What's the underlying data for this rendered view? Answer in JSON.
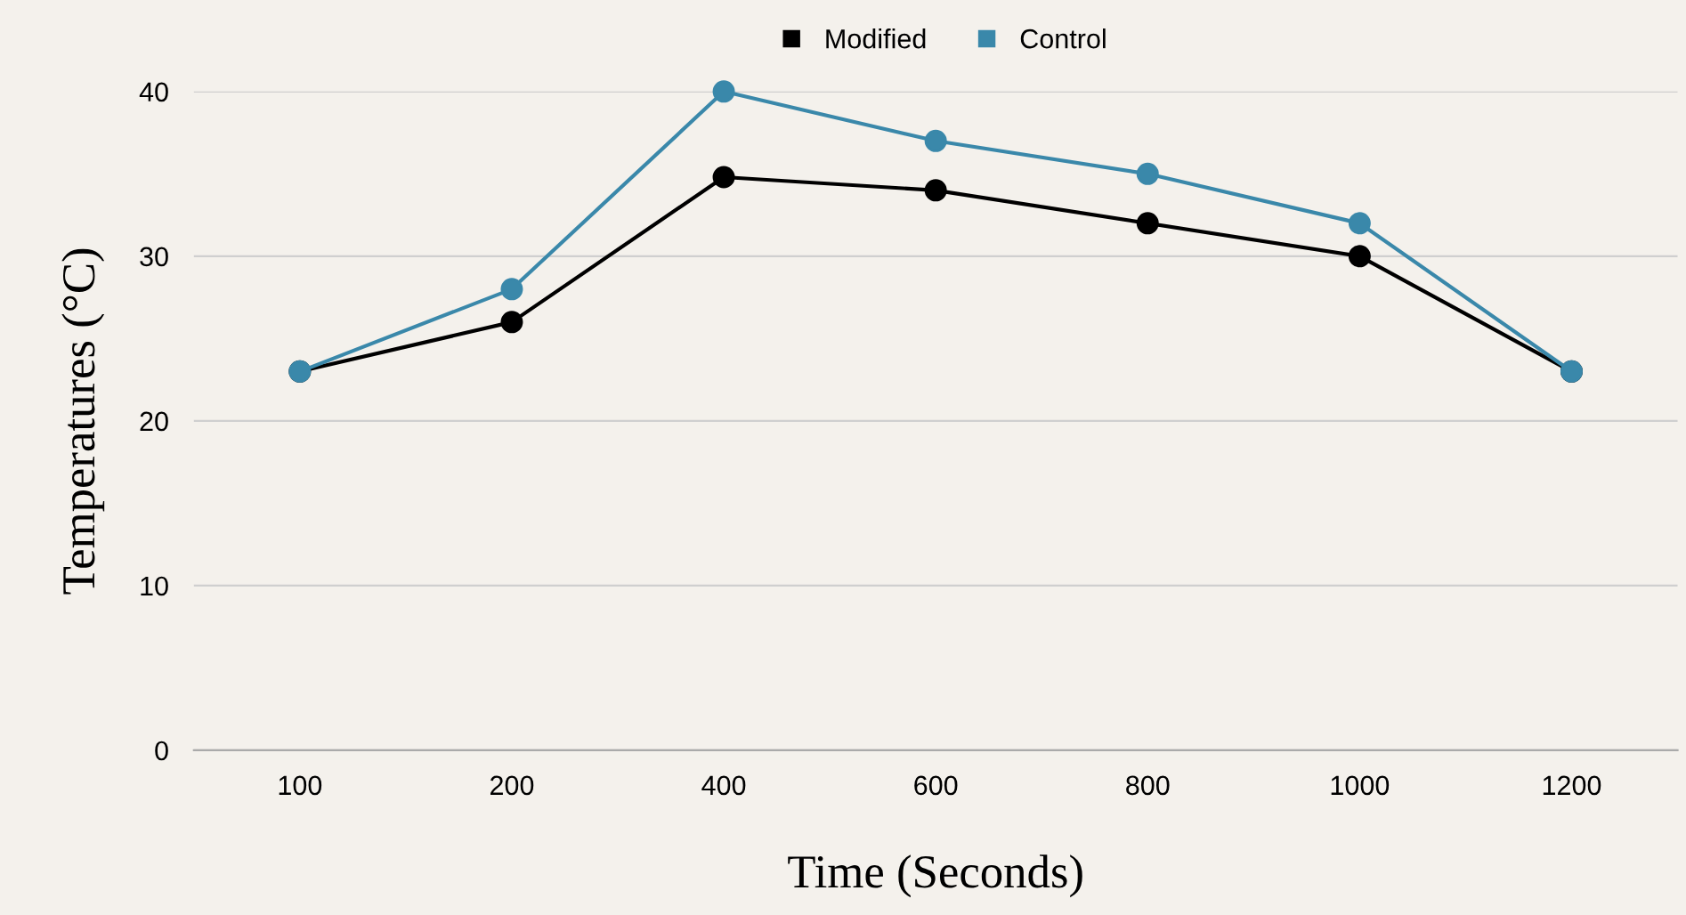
{
  "chart_data": {
    "type": "line",
    "xlabel": "Time (Seconds)",
    "ylabel": "Temperatures (°C)",
    "categories": [
      "100",
      "200",
      "400",
      "600",
      "800",
      "1000",
      "1200"
    ],
    "series": [
      {
        "name": "Modified",
        "color": "#000000",
        "values": [
          23,
          26,
          34.8,
          34,
          32,
          30,
          23
        ]
      },
      {
        "name": "Control",
        "color": "#3a88aa",
        "values": [
          23,
          28,
          40,
          37,
          35,
          32,
          23
        ]
      }
    ],
    "ylim": [
      0,
      40
    ],
    "yticks": [
      0,
      10,
      20,
      30,
      40
    ],
    "grid": "y",
    "legend": "top",
    "marker": "circle",
    "line_style": "solid"
  }
}
